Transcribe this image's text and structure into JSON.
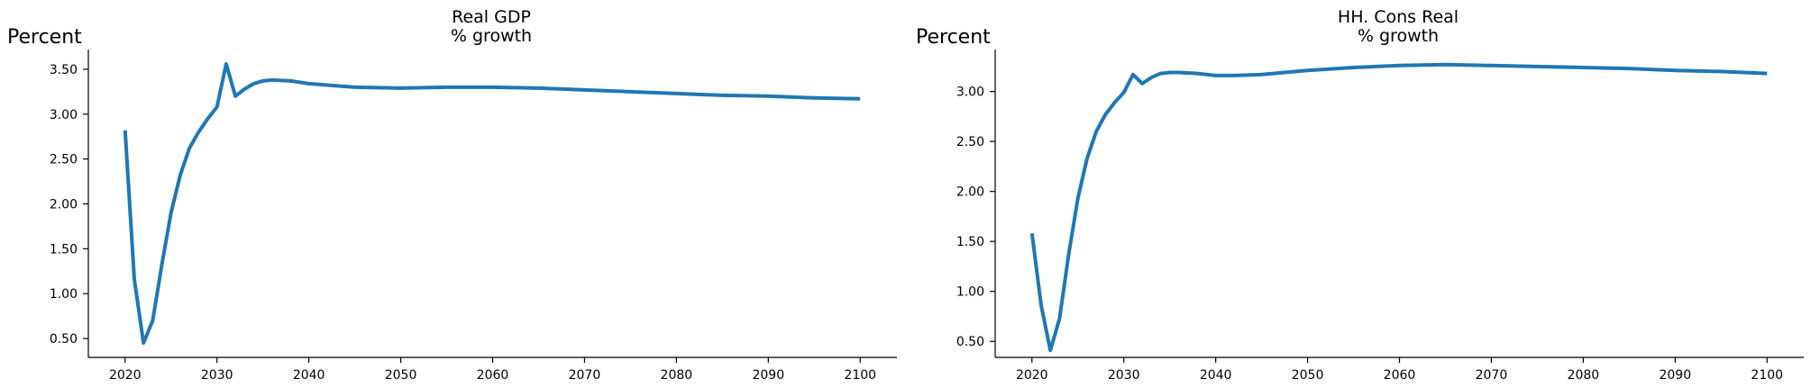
{
  "colors": {
    "series": "#1f77b4",
    "axis": "#000000",
    "background": "#ffffff"
  },
  "chart_data": [
    {
      "type": "line",
      "title": "Real GDP",
      "subtitle": "% growth",
      "xlabel": "",
      "ylabel": "Percent",
      "grid": false,
      "legend": "none",
      "xlim": [
        2016,
        2104
      ],
      "ylim": [
        0.29,
        3.72
      ],
      "xticks": [
        2020,
        2030,
        2040,
        2050,
        2060,
        2070,
        2080,
        2090,
        2100
      ],
      "yticks": [
        "0.50",
        "1.00",
        "1.50",
        "2.00",
        "2.50",
        "3.00",
        "3.50"
      ],
      "series": [
        {
          "x": [
            2020,
            2021,
            2022,
            2023,
            2024,
            2025,
            2026,
            2027,
            2028,
            2029,
            2030,
            2031,
            2032,
            2033,
            2034,
            2035,
            2036,
            2038,
            2040,
            2045,
            2050,
            2055,
            2060,
            2065,
            2070,
            2075,
            2080,
            2085,
            2090,
            2095,
            2100
          ],
          "y": [
            2.82,
            1.16,
            0.45,
            0.7,
            1.32,
            1.9,
            2.32,
            2.62,
            2.8,
            2.95,
            3.08,
            3.56,
            3.2,
            3.28,
            3.34,
            3.37,
            3.38,
            3.37,
            3.34,
            3.3,
            3.29,
            3.3,
            3.3,
            3.29,
            3.27,
            3.25,
            3.23,
            3.21,
            3.2,
            3.18,
            3.17
          ]
        }
      ]
    },
    {
      "type": "line",
      "title": "HH. Cons Real",
      "subtitle": "% growth",
      "xlabel": "",
      "ylabel": "Percent",
      "grid": false,
      "legend": "none",
      "xlim": [
        2016,
        2104
      ],
      "ylim": [
        0.34,
        3.42
      ],
      "xticks": [
        2020,
        2030,
        2040,
        2050,
        2060,
        2070,
        2080,
        2090,
        2100
      ],
      "yticks": [
        "0.50",
        "1.00",
        "1.50",
        "2.00",
        "2.50",
        "3.00"
      ],
      "series": [
        {
          "x": [
            2020,
            2021,
            2022,
            2023,
            2024,
            2025,
            2026,
            2027,
            2028,
            2029,
            2030,
            2031,
            2032,
            2033,
            2034,
            2035,
            2036,
            2038,
            2040,
            2042,
            2045,
            2050,
            2055,
            2060,
            2065,
            2070,
            2075,
            2080,
            2085,
            2090,
            2095,
            2100
          ],
          "y": [
            1.58,
            0.86,
            0.41,
            0.73,
            1.37,
            1.93,
            2.33,
            2.6,
            2.77,
            2.89,
            2.99,
            3.17,
            3.08,
            3.14,
            3.18,
            3.19,
            3.19,
            3.18,
            3.16,
            3.16,
            3.17,
            3.21,
            3.24,
            3.26,
            3.27,
            3.26,
            3.25,
            3.24,
            3.23,
            3.21,
            3.2,
            3.18
          ]
        }
      ]
    }
  ]
}
